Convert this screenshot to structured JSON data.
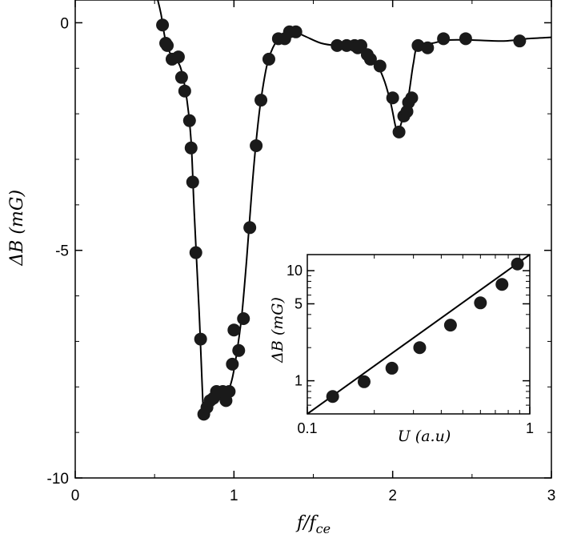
{
  "chart_data": [
    {
      "type": "line",
      "xlabel": "f/f_ce",
      "xlabel_main": "f/f",
      "xlabel_sub": "ce",
      "ylabel": "ΔB (mG)",
      "xlim": [
        0,
        3
      ],
      "ylim": [
        -10,
        0.5
      ],
      "xticks": [
        "0",
        "1",
        "2",
        "3"
      ],
      "yticks": [
        "0",
        "-5",
        "-10"
      ],
      "points": [
        {
          "x": 0.55,
          "y": -0.05
        },
        {
          "x": 0.57,
          "y": -0.45
        },
        {
          "x": 0.58,
          "y": -0.5
        },
        {
          "x": 0.61,
          "y": -0.8
        },
        {
          "x": 0.65,
          "y": -0.75
        },
        {
          "x": 0.67,
          "y": -1.2
        },
        {
          "x": 0.69,
          "y": -1.5
        },
        {
          "x": 0.72,
          "y": -2.15
        },
        {
          "x": 0.73,
          "y": -2.75
        },
        {
          "x": 0.74,
          "y": -3.5
        },
        {
          "x": 0.76,
          "y": -5.05
        },
        {
          "x": 0.79,
          "y": -6.95
        },
        {
          "x": 0.81,
          "y": -8.6
        },
        {
          "x": 0.83,
          "y": -8.45
        },
        {
          "x": 0.85,
          "y": -8.3
        },
        {
          "x": 0.87,
          "y": -8.25
        },
        {
          "x": 0.89,
          "y": -8.1
        },
        {
          "x": 0.91,
          "y": -8.15
        },
        {
          "x": 0.93,
          "y": -8.1
        },
        {
          "x": 0.95,
          "y": -8.3
        },
        {
          "x": 0.97,
          "y": -8.1
        },
        {
          "x": 0.99,
          "y": -7.5
        },
        {
          "x": 1.0,
          "y": -6.75
        },
        {
          "x": 1.03,
          "y": -7.2
        },
        {
          "x": 1.06,
          "y": -6.5
        },
        {
          "x": 1.1,
          "y": -4.5
        },
        {
          "x": 1.14,
          "y": -2.7
        },
        {
          "x": 1.17,
          "y": -1.7
        },
        {
          "x": 1.22,
          "y": -0.8
        },
        {
          "x": 1.28,
          "y": -0.35
        },
        {
          "x": 1.32,
          "y": -0.35
        },
        {
          "x": 1.35,
          "y": -0.2
        },
        {
          "x": 1.39,
          "y": -0.2
        },
        {
          "x": 1.65,
          "y": -0.5
        },
        {
          "x": 1.71,
          "y": -0.5
        },
        {
          "x": 1.76,
          "y": -0.5
        },
        {
          "x": 1.78,
          "y": -0.55
        },
        {
          "x": 1.8,
          "y": -0.5
        },
        {
          "x": 1.84,
          "y": -0.7
        },
        {
          "x": 1.86,
          "y": -0.8
        },
        {
          "x": 1.92,
          "y": -0.95
        },
        {
          "x": 2.0,
          "y": -1.65
        },
        {
          "x": 2.04,
          "y": -2.4
        },
        {
          "x": 2.07,
          "y": -2.05
        },
        {
          "x": 2.09,
          "y": -1.95
        },
        {
          "x": 2.1,
          "y": -1.75
        },
        {
          "x": 2.12,
          "y": -1.65
        },
        {
          "x": 2.16,
          "y": -0.5
        },
        {
          "x": 2.22,
          "y": -0.55
        },
        {
          "x": 2.32,
          "y": -0.35
        },
        {
          "x": 2.46,
          "y": -0.35
        },
        {
          "x": 2.8,
          "y": -0.4
        }
      ],
      "curve": [
        {
          "x": 0.52,
          "y": 0.5
        },
        {
          "x": 0.54,
          "y": 0.2
        },
        {
          "x": 0.57,
          "y": -0.4
        },
        {
          "x": 0.61,
          "y": -0.75
        },
        {
          "x": 0.66,
          "y": -0.95
        },
        {
          "x": 0.7,
          "y": -1.6
        },
        {
          "x": 0.73,
          "y": -2.6
        },
        {
          "x": 0.75,
          "y": -4.2
        },
        {
          "x": 0.78,
          "y": -6.3
        },
        {
          "x": 0.8,
          "y": -8.0
        },
        {
          "x": 0.81,
          "y": -8.55
        },
        {
          "x": 0.84,
          "y": -8.45
        },
        {
          "x": 0.88,
          "y": -8.25
        },
        {
          "x": 0.92,
          "y": -8.15
        },
        {
          "x": 0.96,
          "y": -8.1
        },
        {
          "x": 0.99,
          "y": -7.8
        },
        {
          "x": 1.02,
          "y": -7.2
        },
        {
          "x": 1.05,
          "y": -6.4
        },
        {
          "x": 1.08,
          "y": -5.2
        },
        {
          "x": 1.11,
          "y": -3.8
        },
        {
          "x": 1.14,
          "y": -2.6
        },
        {
          "x": 1.17,
          "y": -1.7
        },
        {
          "x": 1.21,
          "y": -0.9
        },
        {
          "x": 1.26,
          "y": -0.45
        },
        {
          "x": 1.32,
          "y": -0.25
        },
        {
          "x": 1.38,
          "y": -0.2
        },
        {
          "x": 1.45,
          "y": -0.3
        },
        {
          "x": 1.55,
          "y": -0.45
        },
        {
          "x": 1.65,
          "y": -0.5
        },
        {
          "x": 1.75,
          "y": -0.5
        },
        {
          "x": 1.84,
          "y": -0.65
        },
        {
          "x": 1.9,
          "y": -0.9
        },
        {
          "x": 1.95,
          "y": -1.3
        },
        {
          "x": 1.99,
          "y": -1.8
        },
        {
          "x": 2.02,
          "y": -2.3
        },
        {
          "x": 2.04,
          "y": -2.35
        },
        {
          "x": 2.07,
          "y": -2.0
        },
        {
          "x": 2.1,
          "y": -1.6
        },
        {
          "x": 2.13,
          "y": -0.9
        },
        {
          "x": 2.16,
          "y": -0.5
        },
        {
          "x": 2.25,
          "y": -0.45
        },
        {
          "x": 2.35,
          "y": -0.38
        },
        {
          "x": 2.5,
          "y": -0.38
        },
        {
          "x": 2.7,
          "y": -0.4
        },
        {
          "x": 2.85,
          "y": -0.35
        },
        {
          "x": 3.0,
          "y": -0.32
        }
      ]
    },
    {
      "type": "scatter",
      "scale": "log-log",
      "xlabel": "U (a.u)",
      "ylabel": "ΔB (mG)",
      "xlim": [
        0.1,
        1
      ],
      "ylim": [
        0.5,
        14
      ],
      "xticks": [
        {
          "v": 0.1,
          "label": "0.1"
        },
        {
          "v": 1,
          "label": "1"
        }
      ],
      "yticks": [
        {
          "v": 1,
          "label": "1"
        },
        {
          "v": 5,
          "label": "5"
        },
        {
          "v": 10,
          "label": "10"
        }
      ],
      "points": [
        {
          "x": 0.13,
          "y": 0.72
        },
        {
          "x": 0.18,
          "y": 0.98
        },
        {
          "x": 0.24,
          "y": 1.3
        },
        {
          "x": 0.32,
          "y": 2.0
        },
        {
          "x": 0.44,
          "y": 3.2
        },
        {
          "x": 0.6,
          "y": 5.1
        },
        {
          "x": 0.75,
          "y": 7.5
        },
        {
          "x": 0.88,
          "y": 11.5
        }
      ],
      "fit": [
        {
          "x": 0.1,
          "y": 0.5
        },
        {
          "x": 1.0,
          "y": 14.0
        }
      ]
    }
  ]
}
